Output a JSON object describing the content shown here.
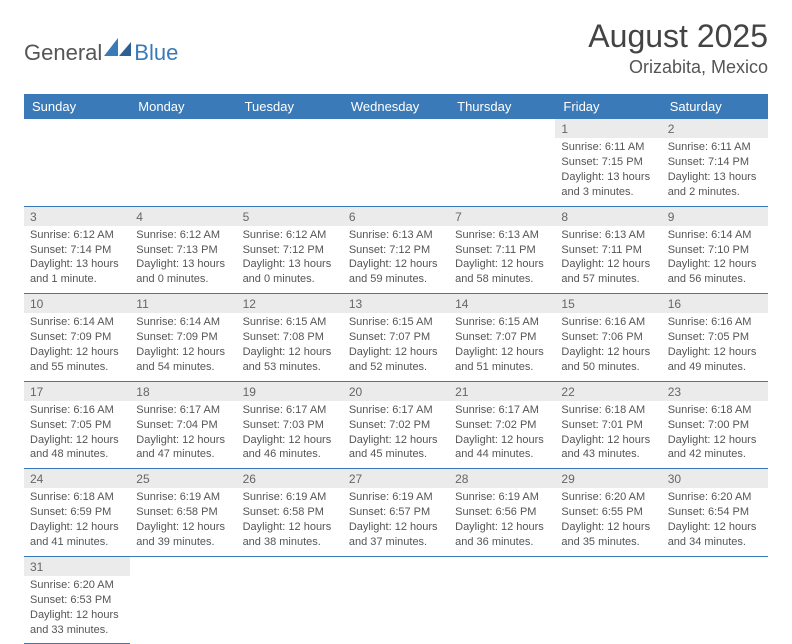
{
  "logo": {
    "general": "General",
    "blue": "Blue"
  },
  "title": "August 2025",
  "location": "Orizabita, Mexico",
  "colors": {
    "header_bg": "#3a7ab8",
    "daynum_bg": "#ebebeb",
    "border": "#3a7ab8"
  },
  "weekdays": [
    "Sunday",
    "Monday",
    "Tuesday",
    "Wednesday",
    "Thursday",
    "Friday",
    "Saturday"
  ],
  "weeks": [
    {
      "nums": [
        "",
        "",
        "",
        "",
        "",
        "1",
        "2"
      ],
      "cells": [
        null,
        null,
        null,
        null,
        null,
        {
          "sunrise": "Sunrise: 6:11 AM",
          "sunset": "Sunset: 7:15 PM",
          "daylight": "Daylight: 13 hours and 3 minutes."
        },
        {
          "sunrise": "Sunrise: 6:11 AM",
          "sunset": "Sunset: 7:14 PM",
          "daylight": "Daylight: 13 hours and 2 minutes."
        }
      ]
    },
    {
      "nums": [
        "3",
        "4",
        "5",
        "6",
        "7",
        "8",
        "9"
      ],
      "cells": [
        {
          "sunrise": "Sunrise: 6:12 AM",
          "sunset": "Sunset: 7:14 PM",
          "daylight": "Daylight: 13 hours and 1 minute."
        },
        {
          "sunrise": "Sunrise: 6:12 AM",
          "sunset": "Sunset: 7:13 PM",
          "daylight": "Daylight: 13 hours and 0 minutes."
        },
        {
          "sunrise": "Sunrise: 6:12 AM",
          "sunset": "Sunset: 7:12 PM",
          "daylight": "Daylight: 13 hours and 0 minutes."
        },
        {
          "sunrise": "Sunrise: 6:13 AM",
          "sunset": "Sunset: 7:12 PM",
          "daylight": "Daylight: 12 hours and 59 minutes."
        },
        {
          "sunrise": "Sunrise: 6:13 AM",
          "sunset": "Sunset: 7:11 PM",
          "daylight": "Daylight: 12 hours and 58 minutes."
        },
        {
          "sunrise": "Sunrise: 6:13 AM",
          "sunset": "Sunset: 7:11 PM",
          "daylight": "Daylight: 12 hours and 57 minutes."
        },
        {
          "sunrise": "Sunrise: 6:14 AM",
          "sunset": "Sunset: 7:10 PM",
          "daylight": "Daylight: 12 hours and 56 minutes."
        }
      ]
    },
    {
      "nums": [
        "10",
        "11",
        "12",
        "13",
        "14",
        "15",
        "16"
      ],
      "cells": [
        {
          "sunrise": "Sunrise: 6:14 AM",
          "sunset": "Sunset: 7:09 PM",
          "daylight": "Daylight: 12 hours and 55 minutes."
        },
        {
          "sunrise": "Sunrise: 6:14 AM",
          "sunset": "Sunset: 7:09 PM",
          "daylight": "Daylight: 12 hours and 54 minutes."
        },
        {
          "sunrise": "Sunrise: 6:15 AM",
          "sunset": "Sunset: 7:08 PM",
          "daylight": "Daylight: 12 hours and 53 minutes."
        },
        {
          "sunrise": "Sunrise: 6:15 AM",
          "sunset": "Sunset: 7:07 PM",
          "daylight": "Daylight: 12 hours and 52 minutes."
        },
        {
          "sunrise": "Sunrise: 6:15 AM",
          "sunset": "Sunset: 7:07 PM",
          "daylight": "Daylight: 12 hours and 51 minutes."
        },
        {
          "sunrise": "Sunrise: 6:16 AM",
          "sunset": "Sunset: 7:06 PM",
          "daylight": "Daylight: 12 hours and 50 minutes."
        },
        {
          "sunrise": "Sunrise: 6:16 AM",
          "sunset": "Sunset: 7:05 PM",
          "daylight": "Daylight: 12 hours and 49 minutes."
        }
      ]
    },
    {
      "nums": [
        "17",
        "18",
        "19",
        "20",
        "21",
        "22",
        "23"
      ],
      "cells": [
        {
          "sunrise": "Sunrise: 6:16 AM",
          "sunset": "Sunset: 7:05 PM",
          "daylight": "Daylight: 12 hours and 48 minutes."
        },
        {
          "sunrise": "Sunrise: 6:17 AM",
          "sunset": "Sunset: 7:04 PM",
          "daylight": "Daylight: 12 hours and 47 minutes."
        },
        {
          "sunrise": "Sunrise: 6:17 AM",
          "sunset": "Sunset: 7:03 PM",
          "daylight": "Daylight: 12 hours and 46 minutes."
        },
        {
          "sunrise": "Sunrise: 6:17 AM",
          "sunset": "Sunset: 7:02 PM",
          "daylight": "Daylight: 12 hours and 45 minutes."
        },
        {
          "sunrise": "Sunrise: 6:17 AM",
          "sunset": "Sunset: 7:02 PM",
          "daylight": "Daylight: 12 hours and 44 minutes."
        },
        {
          "sunrise": "Sunrise: 6:18 AM",
          "sunset": "Sunset: 7:01 PM",
          "daylight": "Daylight: 12 hours and 43 minutes."
        },
        {
          "sunrise": "Sunrise: 6:18 AM",
          "sunset": "Sunset: 7:00 PM",
          "daylight": "Daylight: 12 hours and 42 minutes."
        }
      ]
    },
    {
      "nums": [
        "24",
        "25",
        "26",
        "27",
        "28",
        "29",
        "30"
      ],
      "cells": [
        {
          "sunrise": "Sunrise: 6:18 AM",
          "sunset": "Sunset: 6:59 PM",
          "daylight": "Daylight: 12 hours and 41 minutes."
        },
        {
          "sunrise": "Sunrise: 6:19 AM",
          "sunset": "Sunset: 6:58 PM",
          "daylight": "Daylight: 12 hours and 39 minutes."
        },
        {
          "sunrise": "Sunrise: 6:19 AM",
          "sunset": "Sunset: 6:58 PM",
          "daylight": "Daylight: 12 hours and 38 minutes."
        },
        {
          "sunrise": "Sunrise: 6:19 AM",
          "sunset": "Sunset: 6:57 PM",
          "daylight": "Daylight: 12 hours and 37 minutes."
        },
        {
          "sunrise": "Sunrise: 6:19 AM",
          "sunset": "Sunset: 6:56 PM",
          "daylight": "Daylight: 12 hours and 36 minutes."
        },
        {
          "sunrise": "Sunrise: 6:20 AM",
          "sunset": "Sunset: 6:55 PM",
          "daylight": "Daylight: 12 hours and 35 minutes."
        },
        {
          "sunrise": "Sunrise: 6:20 AM",
          "sunset": "Sunset: 6:54 PM",
          "daylight": "Daylight: 12 hours and 34 minutes."
        }
      ]
    },
    {
      "nums": [
        "31",
        "",
        "",
        "",
        "",
        "",
        ""
      ],
      "cells": [
        {
          "sunrise": "Sunrise: 6:20 AM",
          "sunset": "Sunset: 6:53 PM",
          "daylight": "Daylight: 12 hours and 33 minutes."
        },
        null,
        null,
        null,
        null,
        null,
        null
      ],
      "last": true
    }
  ]
}
